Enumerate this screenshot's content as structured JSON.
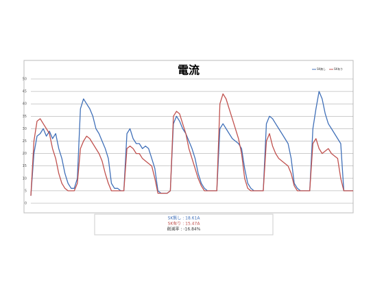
{
  "chart_data": {
    "type": "line",
    "title": "電流",
    "ylim": [
      0,
      50
    ],
    "yticks": [
      0,
      5,
      10,
      15,
      20,
      25,
      30,
      35,
      40,
      45,
      50
    ],
    "grid": true,
    "legend": "top-right",
    "series": [
      {
        "name": "SK無し",
        "color": "#3f6fb8",
        "values": [
          3,
          20,
          27,
          28,
          30,
          27,
          29,
          26,
          28,
          22,
          18,
          12,
          8,
          6,
          6,
          10,
          38,
          42,
          40,
          38,
          35,
          30,
          28,
          25,
          22,
          18,
          8,
          6,
          6,
          5,
          5,
          28,
          30,
          26,
          24,
          24,
          22,
          23,
          22,
          18,
          14,
          5,
          4,
          4,
          4,
          5,
          32,
          35,
          33,
          30,
          28,
          25,
          22,
          18,
          12,
          8,
          6,
          5,
          5,
          5,
          5,
          30,
          32,
          30,
          28,
          26,
          25,
          24,
          22,
          14,
          8,
          6,
          5,
          5,
          5,
          5,
          32,
          35,
          34,
          32,
          30,
          28,
          26,
          24,
          18,
          8,
          6,
          5,
          5,
          5,
          5,
          30,
          38,
          45,
          42,
          36,
          32,
          30,
          28,
          26,
          24,
          5,
          5,
          5,
          5
        ]
      },
      {
        "name": "SK有り",
        "color": "#c0504d",
        "values": [
          3,
          25,
          33,
          34,
          32,
          30,
          28,
          22,
          18,
          12,
          8,
          6,
          5,
          5,
          5,
          8,
          22,
          25,
          27,
          26,
          24,
          22,
          20,
          17,
          12,
          8,
          5,
          5,
          5,
          5,
          5,
          22,
          23,
          22,
          20,
          20,
          18,
          17,
          16,
          15,
          10,
          4,
          4,
          4,
          4,
          5,
          35,
          37,
          36,
          32,
          28,
          22,
          18,
          14,
          10,
          7,
          5,
          5,
          5,
          5,
          5,
          40,
          44,
          42,
          38,
          34,
          30,
          26,
          20,
          10,
          6,
          5,
          5,
          5,
          5,
          5,
          25,
          28,
          23,
          20,
          18,
          17,
          16,
          15,
          12,
          7,
          5,
          5,
          5,
          5,
          5,
          24,
          26,
          22,
          20,
          21,
          22,
          20,
          19,
          18,
          10,
          5,
          5,
          5,
          5
        ]
      }
    ],
    "summary": [
      "SK無し : 18.61A",
      "SK有り : 15.47A",
      "削減率 : -16.84%"
    ]
  }
}
